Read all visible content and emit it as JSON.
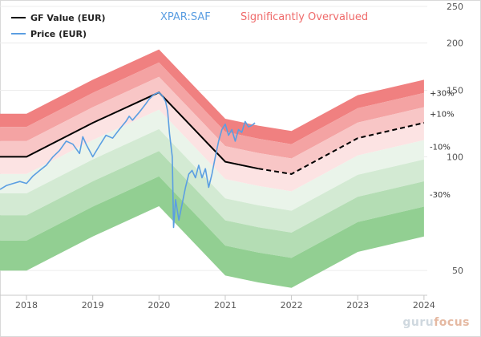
{
  "chart_data": {
    "type": "area",
    "title": "Significantly Overvalued",
    "symbol": "XPAR:SAF",
    "x_ticks": [
      "2018",
      "2019",
      "2020",
      "2021",
      "2022",
      "2023",
      "2024"
    ],
    "y_ticks": [
      50,
      100,
      150,
      200,
      250
    ],
    "ylim": [
      43,
      250
    ],
    "xlim": [
      2017.6,
      2024.05
    ],
    "band_labels": [
      "+30%",
      "+10%",
      "-10%",
      "-30%"
    ],
    "legend": [
      {
        "name": "GF Value (EUR)",
        "color": "#000000"
      },
      {
        "name": "Price (EUR)",
        "color": "#5b9ee2"
      }
    ],
    "gf_value": {
      "x": [
        2017.6,
        2018.0,
        2019.0,
        2020.0,
        2021.0,
        2021.5
      ],
      "y": [
        100,
        100,
        123,
        148,
        97,
        93
      ]
    },
    "gf_value_estimate": {
      "x": [
        2021.5,
        2022.0,
        2023.0,
        2024.0
      ],
      "y": [
        93,
        90,
        112,
        123
      ]
    },
    "band_multipliers": [
      1.3,
      1.2,
      1.1,
      1.0,
      0.9,
      0.8,
      0.7,
      0.6
    ],
    "band_colors": [
      "#f08080",
      "#f4a3a3",
      "#f8c6c6",
      "#fce3e3",
      "#eaf4ea",
      "#d3ead3",
      "#b4ddb4",
      "#92cf92"
    ],
    "price": {
      "x": [
        2017.6,
        2017.7,
        2017.8,
        2017.9,
        2018.0,
        2018.1,
        2018.2,
        2018.3,
        2018.4,
        2018.5,
        2018.6,
        2018.7,
        2018.8,
        2018.85,
        2018.9,
        2019.0,
        2019.1,
        2019.2,
        2019.3,
        2019.4,
        2019.5,
        2019.55,
        2019.6,
        2019.7,
        2019.8,
        2019.85,
        2019.9,
        2019.95,
        2020.0,
        2020.05,
        2020.1,
        2020.13,
        2020.16,
        2020.2,
        2020.22,
        2020.25,
        2020.3,
        2020.35,
        2020.4,
        2020.45,
        2020.5,
        2020.55,
        2020.6,
        2020.65,
        2020.7,
        2020.75,
        2020.8,
        2020.85,
        2020.9,
        2020.95,
        2021.0,
        2021.05,
        2021.1,
        2021.15,
        2021.2,
        2021.25,
        2021.3,
        2021.35,
        2021.4,
        2021.45
      ],
      "y": [
        82,
        84,
        85,
        86,
        85,
        89,
        92,
        95,
        100,
        104,
        110,
        108,
        102,
        113,
        108,
        100,
        107,
        114,
        112,
        118,
        124,
        128,
        125,
        131,
        138,
        142,
        145,
        147,
        148,
        145,
        140,
        132,
        115,
        100,
        65,
        77,
        68,
        75,
        83,
        90,
        92,
        88,
        95,
        88,
        93,
        83,
        90,
        100,
        110,
        118,
        122,
        114,
        118,
        110,
        118,
        116,
        124,
        120,
        121,
        123
      ]
    }
  }
}
